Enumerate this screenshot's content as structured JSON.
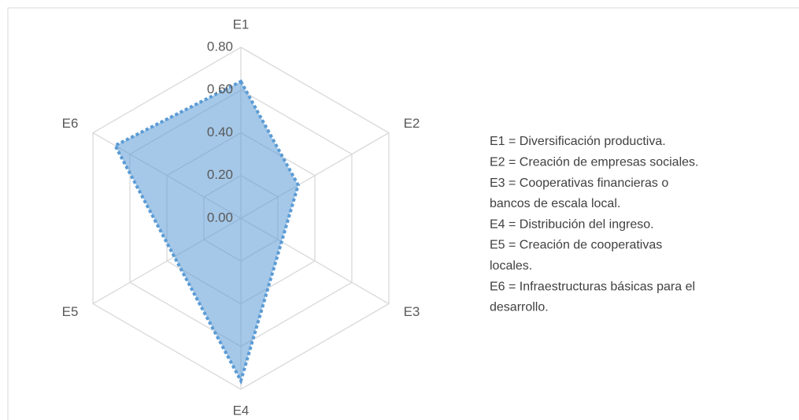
{
  "chart_data": {
    "type": "radar",
    "categories": [
      "E1",
      "E2",
      "E3",
      "E4",
      "E5",
      "E6"
    ],
    "series": [
      {
        "name": null,
        "color": "#5b9bd5",
        "values": [
          0.64,
          0.31,
          0.22,
          0.76,
          0.36,
          0.68
        ]
      }
    ],
    "ylim": [
      0,
      0.8
    ],
    "yticks": [
      {
        "value": 0,
        "label": "0.00"
      },
      {
        "value": 0.2,
        "label": "0.20"
      },
      {
        "value": 0.4,
        "label": "0.40"
      },
      {
        "value": 0.6,
        "label": "0.60"
      },
      {
        "value": 0.8,
        "label": "0.80"
      }
    ],
    "grid": true,
    "legend_notes": [
      "E1 = Diversificación productiva.",
      "E2 = Creación de empresas sociales.",
      "E3 = Cooperativas financieras o",
      "bancos de escala local.",
      "E4 = Distribución del ingreso.",
      "E5 = Creación de cooperativas",
      "locales.",
      "E6 = Infraestructuras básicas para el",
      "desarrollo."
    ]
  }
}
